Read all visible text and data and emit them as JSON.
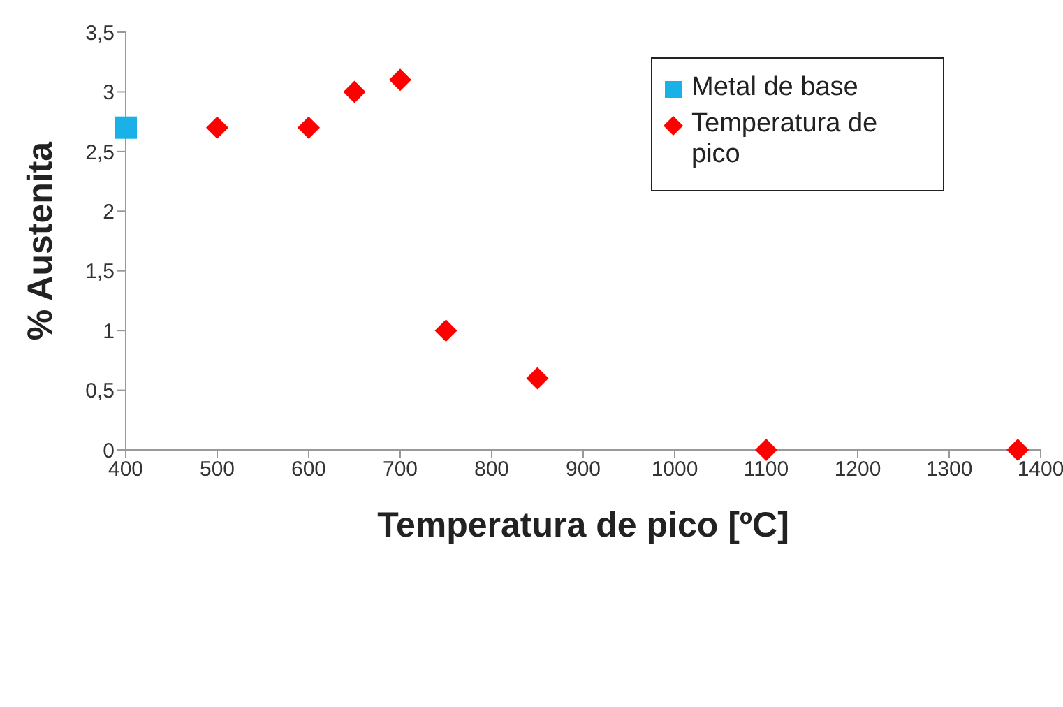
{
  "chart_data": {
    "type": "scatter",
    "xlabel": "Temperatura de pico [ºC]",
    "ylabel": "% Austenita",
    "xlim": [
      400,
      1400
    ],
    "xticks": [
      400,
      500,
      600,
      700,
      800,
      900,
      1000,
      1100,
      1200,
      1300,
      1400
    ],
    "ylim": [
      0,
      3.5
    ],
    "yticks": [
      0,
      {
        "value": 0.5,
        "label": "0,5"
      },
      1,
      {
        "value": 1.5,
        "label": "1,5"
      },
      2,
      {
        "value": 2.5,
        "label": "2,5"
      },
      3,
      {
        "value": 3.5,
        "label": "3,5"
      }
    ],
    "grid": false,
    "legend": "top right",
    "series": [
      {
        "name": "Metal de base",
        "color": "#1ab0e8",
        "marker": "square",
        "x": [
          400
        ],
        "values": [
          2.7
        ]
      },
      {
        "name": "Temperatura de pico",
        "color": "#ff0000",
        "marker": "diamond",
        "x": [
          500,
          600,
          650,
          700,
          750,
          850,
          1100,
          1375
        ],
        "values": [
          2.7,
          2.7,
          3,
          3.1,
          1,
          0.6,
          0,
          0
        ]
      }
    ]
  }
}
